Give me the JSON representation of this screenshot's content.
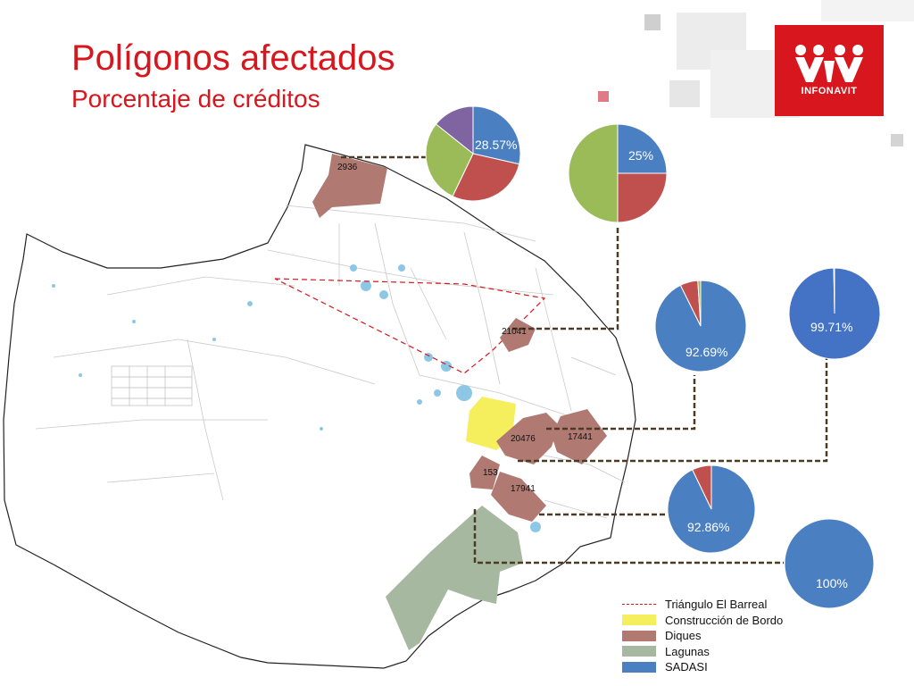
{
  "title": "Polígonos afectados",
  "subtitle": "Porcentaje de créditos",
  "logo": {
    "text": "INFONAVIT",
    "color": "#d7161d"
  },
  "polygons": [
    {
      "id": "p2936",
      "label": "2936"
    },
    {
      "id": "p21041",
      "label": "21041"
    },
    {
      "id": "p20476",
      "label": "20476"
    },
    {
      "id": "p17441",
      "label": "17441"
    },
    {
      "id": "p153",
      "label": "153"
    },
    {
      "id": "p17941",
      "label": "17941"
    }
  ],
  "pies": [
    {
      "id": "pie-2936",
      "label": "28.57%",
      "slices": [
        {
          "value": 28.57,
          "color": "#4a7fc1"
        },
        {
          "value": 28.57,
          "color": "#c0504d"
        },
        {
          "value": 28.57,
          "color": "#9bbb59"
        },
        {
          "value": 14.29,
          "color": "#8064a2"
        }
      ]
    },
    {
      "id": "pie-21041",
      "label": "25%",
      "slices": [
        {
          "value": 25,
          "color": "#4a7fc1"
        },
        {
          "value": 25,
          "color": "#c0504d"
        },
        {
          "value": 50,
          "color": "#9bbb59"
        }
      ]
    },
    {
      "id": "pie-20476",
      "label": "92.69%",
      "slices": [
        {
          "value": 92.69,
          "color": "#4a7fc1"
        },
        {
          "value": 6.3,
          "color": "#c0504d"
        },
        {
          "value": 1.01,
          "color": "#9bbb59"
        }
      ]
    },
    {
      "id": "pie-17441",
      "label": "99.71%",
      "slices": [
        {
          "value": 99.71,
          "color": "#4472c4"
        },
        {
          "value": 0.29,
          "color": "#c0504d"
        }
      ]
    },
    {
      "id": "pie-153",
      "label": "92.86%",
      "slices": [
        {
          "value": 92.86,
          "color": "#4a7fc1"
        },
        {
          "value": 7.14,
          "color": "#c0504d"
        }
      ]
    },
    {
      "id": "pie-17941",
      "label": "100%",
      "slices": [
        {
          "value": 100,
          "color": "#4a7fc1"
        }
      ]
    }
  ],
  "legend": [
    {
      "label": "Triángulo El Barreal",
      "style": "dashed-line",
      "color": "#d7161d"
    },
    {
      "label": "Construcción de Bordo",
      "style": "swatch",
      "color": "#f5ef5e"
    },
    {
      "label": "Diques",
      "style": "swatch",
      "color": "#b07a72"
    },
    {
      "label": "Lagunas",
      "style": "swatch",
      "color": "#a6b8a0"
    },
    {
      "label": "SADASI",
      "style": "swatch",
      "color": "#4a7fc1"
    }
  ]
}
